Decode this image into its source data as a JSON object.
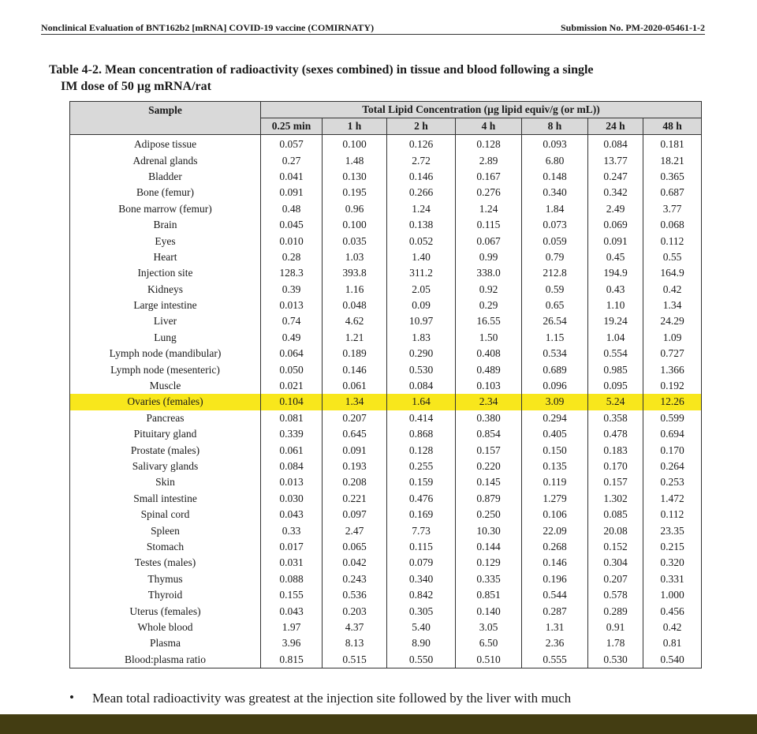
{
  "header": {
    "left": "Nonclinical Evaluation of BNT162b2 [mRNA] COVID-19 vaccine (COMIRNATY)",
    "right": "Submission No. PM-2020-05461-1-2"
  },
  "table": {
    "caption": [
      "Table 4-2. Mean concentration of radioactivity (sexes combined) in tissue and blood following a single",
      "IM dose of 50 µg mRNA/rat"
    ],
    "sample_header": "Sample",
    "group_header": "Total Lipid Concentration (µg lipid equiv/g (or mL))",
    "timepoints": [
      "0.25 min",
      "1 h",
      "2 h",
      "4 h",
      "8 h",
      "24 h",
      "48 h"
    ],
    "rows": [
      [
        "Adipose tissue",
        "0.057",
        "0.100",
        "0.126",
        "0.128",
        "0.093",
        "0.084",
        "0.181"
      ],
      [
        "Adrenal glands",
        "0.27",
        "1.48",
        "2.72",
        "2.89",
        "6.80",
        "13.77",
        "18.21"
      ],
      [
        "Bladder",
        "0.041",
        "0.130",
        "0.146",
        "0.167",
        "0.148",
        "0.247",
        "0.365"
      ],
      [
        "Bone (femur)",
        "0.091",
        "0.195",
        "0.266",
        "0.276",
        "0.340",
        "0.342",
        "0.687"
      ],
      [
        "Bone marrow (femur)",
        "0.48",
        "0.96",
        "1.24",
        "1.24",
        "1.84",
        "2.49",
        "3.77"
      ],
      [
        "Brain",
        "0.045",
        "0.100",
        "0.138",
        "0.115",
        "0.073",
        "0.069",
        "0.068"
      ],
      [
        "Eyes",
        "0.010",
        "0.035",
        "0.052",
        "0.067",
        "0.059",
        "0.091",
        "0.112"
      ],
      [
        "Heart",
        "0.28",
        "1.03",
        "1.40",
        "0.99",
        "0.79",
        "0.45",
        "0.55"
      ],
      [
        "Injection site",
        "128.3",
        "393.8",
        "311.2",
        "338.0",
        "212.8",
        "194.9",
        "164.9"
      ],
      [
        "Kidneys",
        "0.39",
        "1.16",
        "2.05",
        "0.92",
        "0.59",
        "0.43",
        "0.42"
      ],
      [
        "Large intestine",
        "0.013",
        "0.048",
        "0.09",
        "0.29",
        "0.65",
        "1.10",
        "1.34"
      ],
      [
        "Liver",
        "0.74",
        "4.62",
        "10.97",
        "16.55",
        "26.54",
        "19.24",
        "24.29"
      ],
      [
        "Lung",
        "0.49",
        "1.21",
        "1.83",
        "1.50",
        "1.15",
        "1.04",
        "1.09"
      ],
      [
        "Lymph node (mandibular)",
        "0.064",
        "0.189",
        "0.290",
        "0.408",
        "0.534",
        "0.554",
        "0.727"
      ],
      [
        "Lymph node (mesenteric)",
        "0.050",
        "0.146",
        "0.530",
        "0.489",
        "0.689",
        "0.985",
        "1.366"
      ],
      [
        "Muscle",
        "0.021",
        "0.061",
        "0.084",
        "0.103",
        "0.096",
        "0.095",
        "0.192"
      ],
      [
        "Ovaries (females)",
        "0.104",
        "1.34",
        "1.64",
        "2.34",
        "3.09",
        "5.24",
        "12.26"
      ],
      [
        "Pancreas",
        "0.081",
        "0.207",
        "0.414",
        "0.380",
        "0.294",
        "0.358",
        "0.599"
      ],
      [
        "Pituitary gland",
        "0.339",
        "0.645",
        "0.868",
        "0.854",
        "0.405",
        "0.478",
        "0.694"
      ],
      [
        "Prostate (males)",
        "0.061",
        "0.091",
        "0.128",
        "0.157",
        "0.150",
        "0.183",
        "0.170"
      ],
      [
        "Salivary glands",
        "0.084",
        "0.193",
        "0.255",
        "0.220",
        "0.135",
        "0.170",
        "0.264"
      ],
      [
        "Skin",
        "0.013",
        "0.208",
        "0.159",
        "0.145",
        "0.119",
        "0.157",
        "0.253"
      ],
      [
        "Small intestine",
        "0.030",
        "0.221",
        "0.476",
        "0.879",
        "1.279",
        "1.302",
        "1.472"
      ],
      [
        "Spinal cord",
        "0.043",
        "0.097",
        "0.169",
        "0.250",
        "0.106",
        "0.085",
        "0.112"
      ],
      [
        "Spleen",
        "0.33",
        "2.47",
        "7.73",
        "10.30",
        "22.09",
        "20.08",
        "23.35"
      ],
      [
        "Stomach",
        "0.017",
        "0.065",
        "0.115",
        "0.144",
        "0.268",
        "0.152",
        "0.215"
      ],
      [
        "Testes (males)",
        "0.031",
        "0.042",
        "0.079",
        "0.129",
        "0.146",
        "0.304",
        "0.320"
      ],
      [
        "Thymus",
        "0.088",
        "0.243",
        "0.340",
        "0.335",
        "0.196",
        "0.207",
        "0.331"
      ],
      [
        "Thyroid",
        "0.155",
        "0.536",
        "0.842",
        "0.851",
        "0.544",
        "0.578",
        "1.000"
      ],
      [
        "Uterus (females)",
        "0.043",
        "0.203",
        "0.305",
        "0.140",
        "0.287",
        "0.289",
        "0.456"
      ],
      [
        "Whole blood",
        "1.97",
        "4.37",
        "5.40",
        "3.05",
        "1.31",
        "0.91",
        "0.42"
      ],
      [
        "Plasma",
        "3.96",
        "8.13",
        "8.90",
        "6.50",
        "2.36",
        "1.78",
        "0.81"
      ],
      [
        "Blood:plasma ratio",
        "0.815",
        "0.515",
        "0.550",
        "0.510",
        "0.555",
        "0.530",
        "0.540"
      ]
    ]
  },
  "bullet": "Mean total radioactivity was greatest at the injection site followed by the liver with much"
}
